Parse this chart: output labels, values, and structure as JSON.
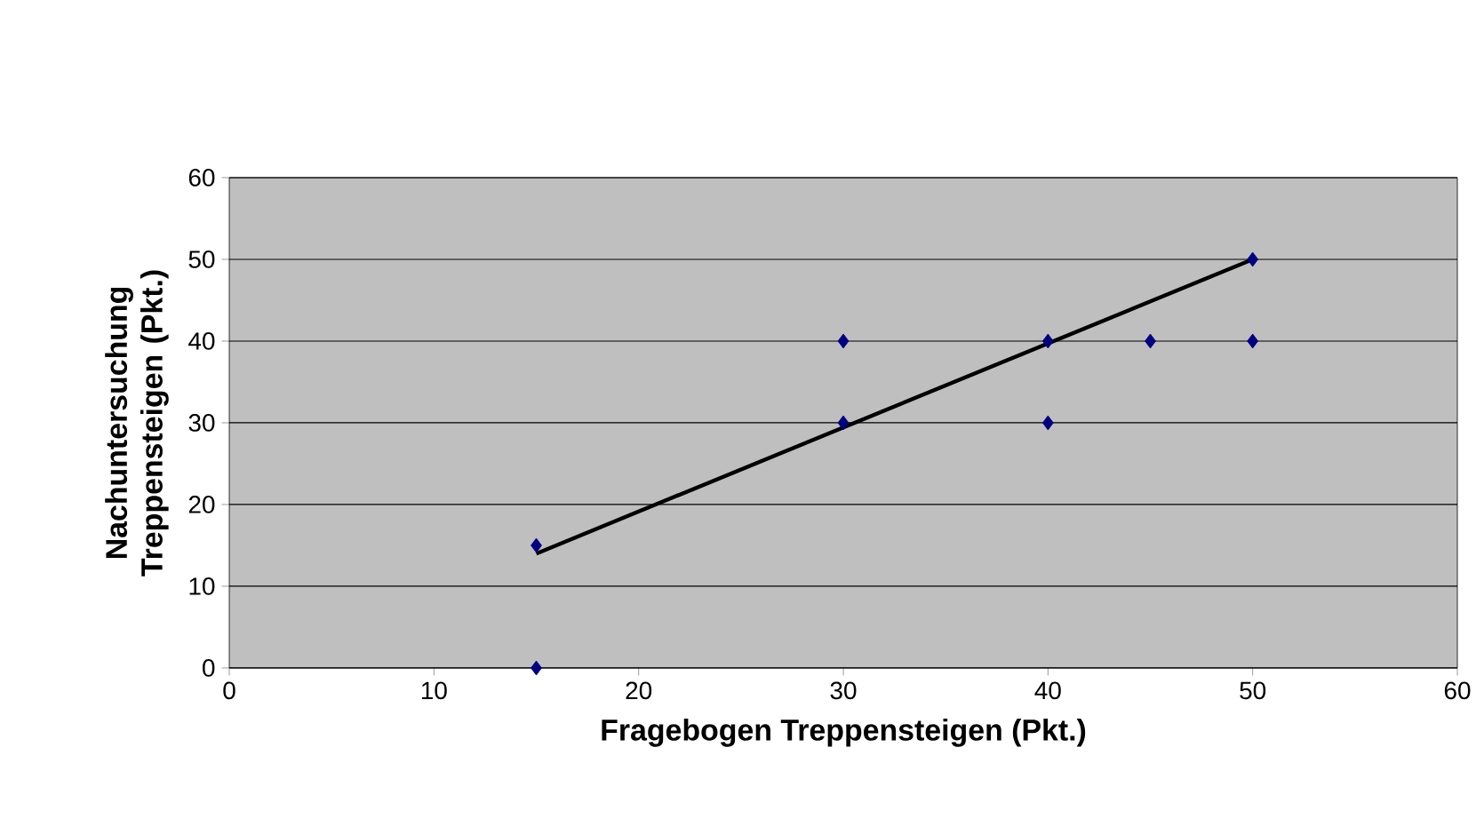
{
  "chart_data": {
    "type": "scatter",
    "xlabel": "Fragebogen Treppensteigen (Pkt.)",
    "ylabel": "Nachuntersuchung Treppensteigen (Pkt.)",
    "xlim": [
      0,
      60
    ],
    "ylim": [
      0,
      60
    ],
    "xticks": [
      0,
      10,
      20,
      30,
      40,
      50,
      60
    ],
    "yticks": [
      0,
      10,
      20,
      30,
      40,
      50,
      60
    ],
    "grid": "y",
    "marker": "diamond",
    "series": [
      {
        "color": "#000080",
        "x": [
          15,
          15,
          30,
          30,
          40,
          40,
          45,
          50,
          50
        ],
        "values": [
          15,
          0,
          30,
          40,
          40,
          30,
          40,
          50,
          40
        ]
      },
      {
        "type": "line",
        "color": "#000000",
        "marker": "none",
        "x": [
          15,
          50
        ],
        "values": [
          14,
          50
        ]
      }
    ]
  }
}
